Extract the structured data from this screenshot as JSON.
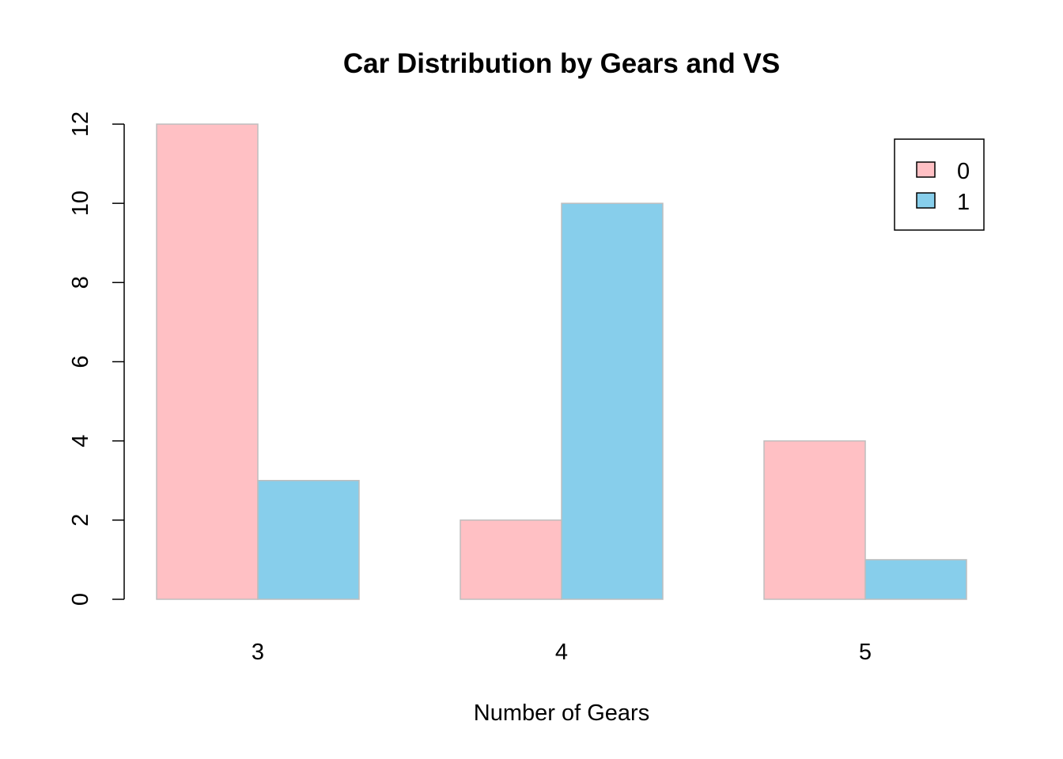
{
  "chart_data": {
    "type": "bar",
    "title": "Car Distribution by Gears and VS",
    "xlabel": "Number of Gears",
    "ylabel": "",
    "categories": [
      "3",
      "4",
      "5"
    ],
    "series": [
      {
        "name": "0",
        "values": [
          12,
          2,
          4
        ],
        "color": "#FFC0C4"
      },
      {
        "name": "1",
        "values": [
          3,
          10,
          1
        ],
        "color": "#87CEEB"
      }
    ],
    "ylim": [
      0,
      12
    ],
    "yticks": [
      0,
      2,
      4,
      6,
      8,
      10,
      12
    ],
    "grid": false,
    "legend_position": "top-right",
    "bar_border_color": "#BEBEBE"
  }
}
